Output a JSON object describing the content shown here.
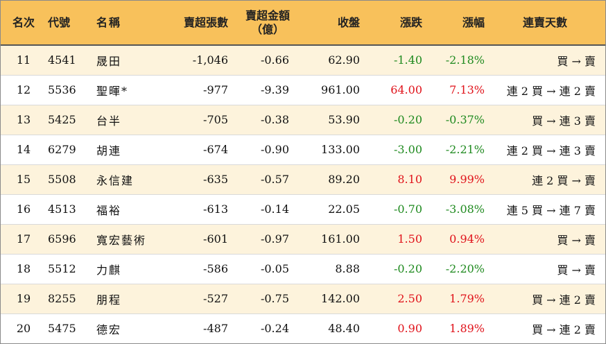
{
  "headers": {
    "rank": "名次",
    "code": "代號",
    "name": "名稱",
    "net_sell_lots": "賣超張數",
    "net_sell_amount_line1": "賣超金額",
    "net_sell_amount_line2": "（億）",
    "close": "收盤",
    "change": "漲跌",
    "change_pct": "漲幅",
    "streak": "連賣天數"
  },
  "colors": {
    "header_bg": "#f8c15b",
    "row_alt_bg": "#fdf3dc",
    "up": "#e0121a",
    "down": "#1f8a1f"
  },
  "rows": [
    {
      "rank": "11",
      "code": "4541",
      "name": "晟田",
      "lots": "-1,046",
      "amount": "-0.66",
      "close": "62.90",
      "change": "-1.40",
      "pct": "-2.18%",
      "dir": "down",
      "streak": "買 → 賣"
    },
    {
      "rank": "12",
      "code": "5536",
      "name": "聖暉*",
      "lots": "-977",
      "amount": "-9.39",
      "close": "961.00",
      "change": "64.00",
      "pct": "7.13%",
      "dir": "up",
      "streak": "連 2 買 → 連 2 賣"
    },
    {
      "rank": "13",
      "code": "5425",
      "name": "台半",
      "lots": "-705",
      "amount": "-0.38",
      "close": "53.90",
      "change": "-0.20",
      "pct": "-0.37%",
      "dir": "down",
      "streak": "買 → 連 3 賣"
    },
    {
      "rank": "14",
      "code": "6279",
      "name": "胡連",
      "lots": "-674",
      "amount": "-0.90",
      "close": "133.00",
      "change": "-3.00",
      "pct": "-2.21%",
      "dir": "down",
      "streak": "連 2 買 → 連 3 賣"
    },
    {
      "rank": "15",
      "code": "5508",
      "name": "永信建",
      "lots": "-635",
      "amount": "-0.57",
      "close": "89.20",
      "change": "8.10",
      "pct": "9.99%",
      "dir": "up",
      "streak": "連 2 買 → 賣"
    },
    {
      "rank": "16",
      "code": "4513",
      "name": "福裕",
      "lots": "-613",
      "amount": "-0.14",
      "close": "22.05",
      "change": "-0.70",
      "pct": "-3.08%",
      "dir": "down",
      "streak": "連 5 買 → 連 7 賣"
    },
    {
      "rank": "17",
      "code": "6596",
      "name": "寬宏藝術",
      "lots": "-601",
      "amount": "-0.97",
      "close": "161.00",
      "change": "1.50",
      "pct": "0.94%",
      "dir": "up",
      "streak": "買 → 賣"
    },
    {
      "rank": "18",
      "code": "5512",
      "name": "力麒",
      "lots": "-586",
      "amount": "-0.05",
      "close": "8.88",
      "change": "-0.20",
      "pct": "-2.20%",
      "dir": "down",
      "streak": "買 → 賣"
    },
    {
      "rank": "19",
      "code": "8255",
      "name": "朋程",
      "lots": "-527",
      "amount": "-0.75",
      "close": "142.00",
      "change": "2.50",
      "pct": "1.79%",
      "dir": "up",
      "streak": "買 → 連 2 賣"
    },
    {
      "rank": "20",
      "code": "5475",
      "name": "德宏",
      "lots": "-487",
      "amount": "-0.24",
      "close": "48.40",
      "change": "0.90",
      "pct": "1.89%",
      "dir": "up",
      "streak": "買 → 連 2 賣"
    }
  ]
}
